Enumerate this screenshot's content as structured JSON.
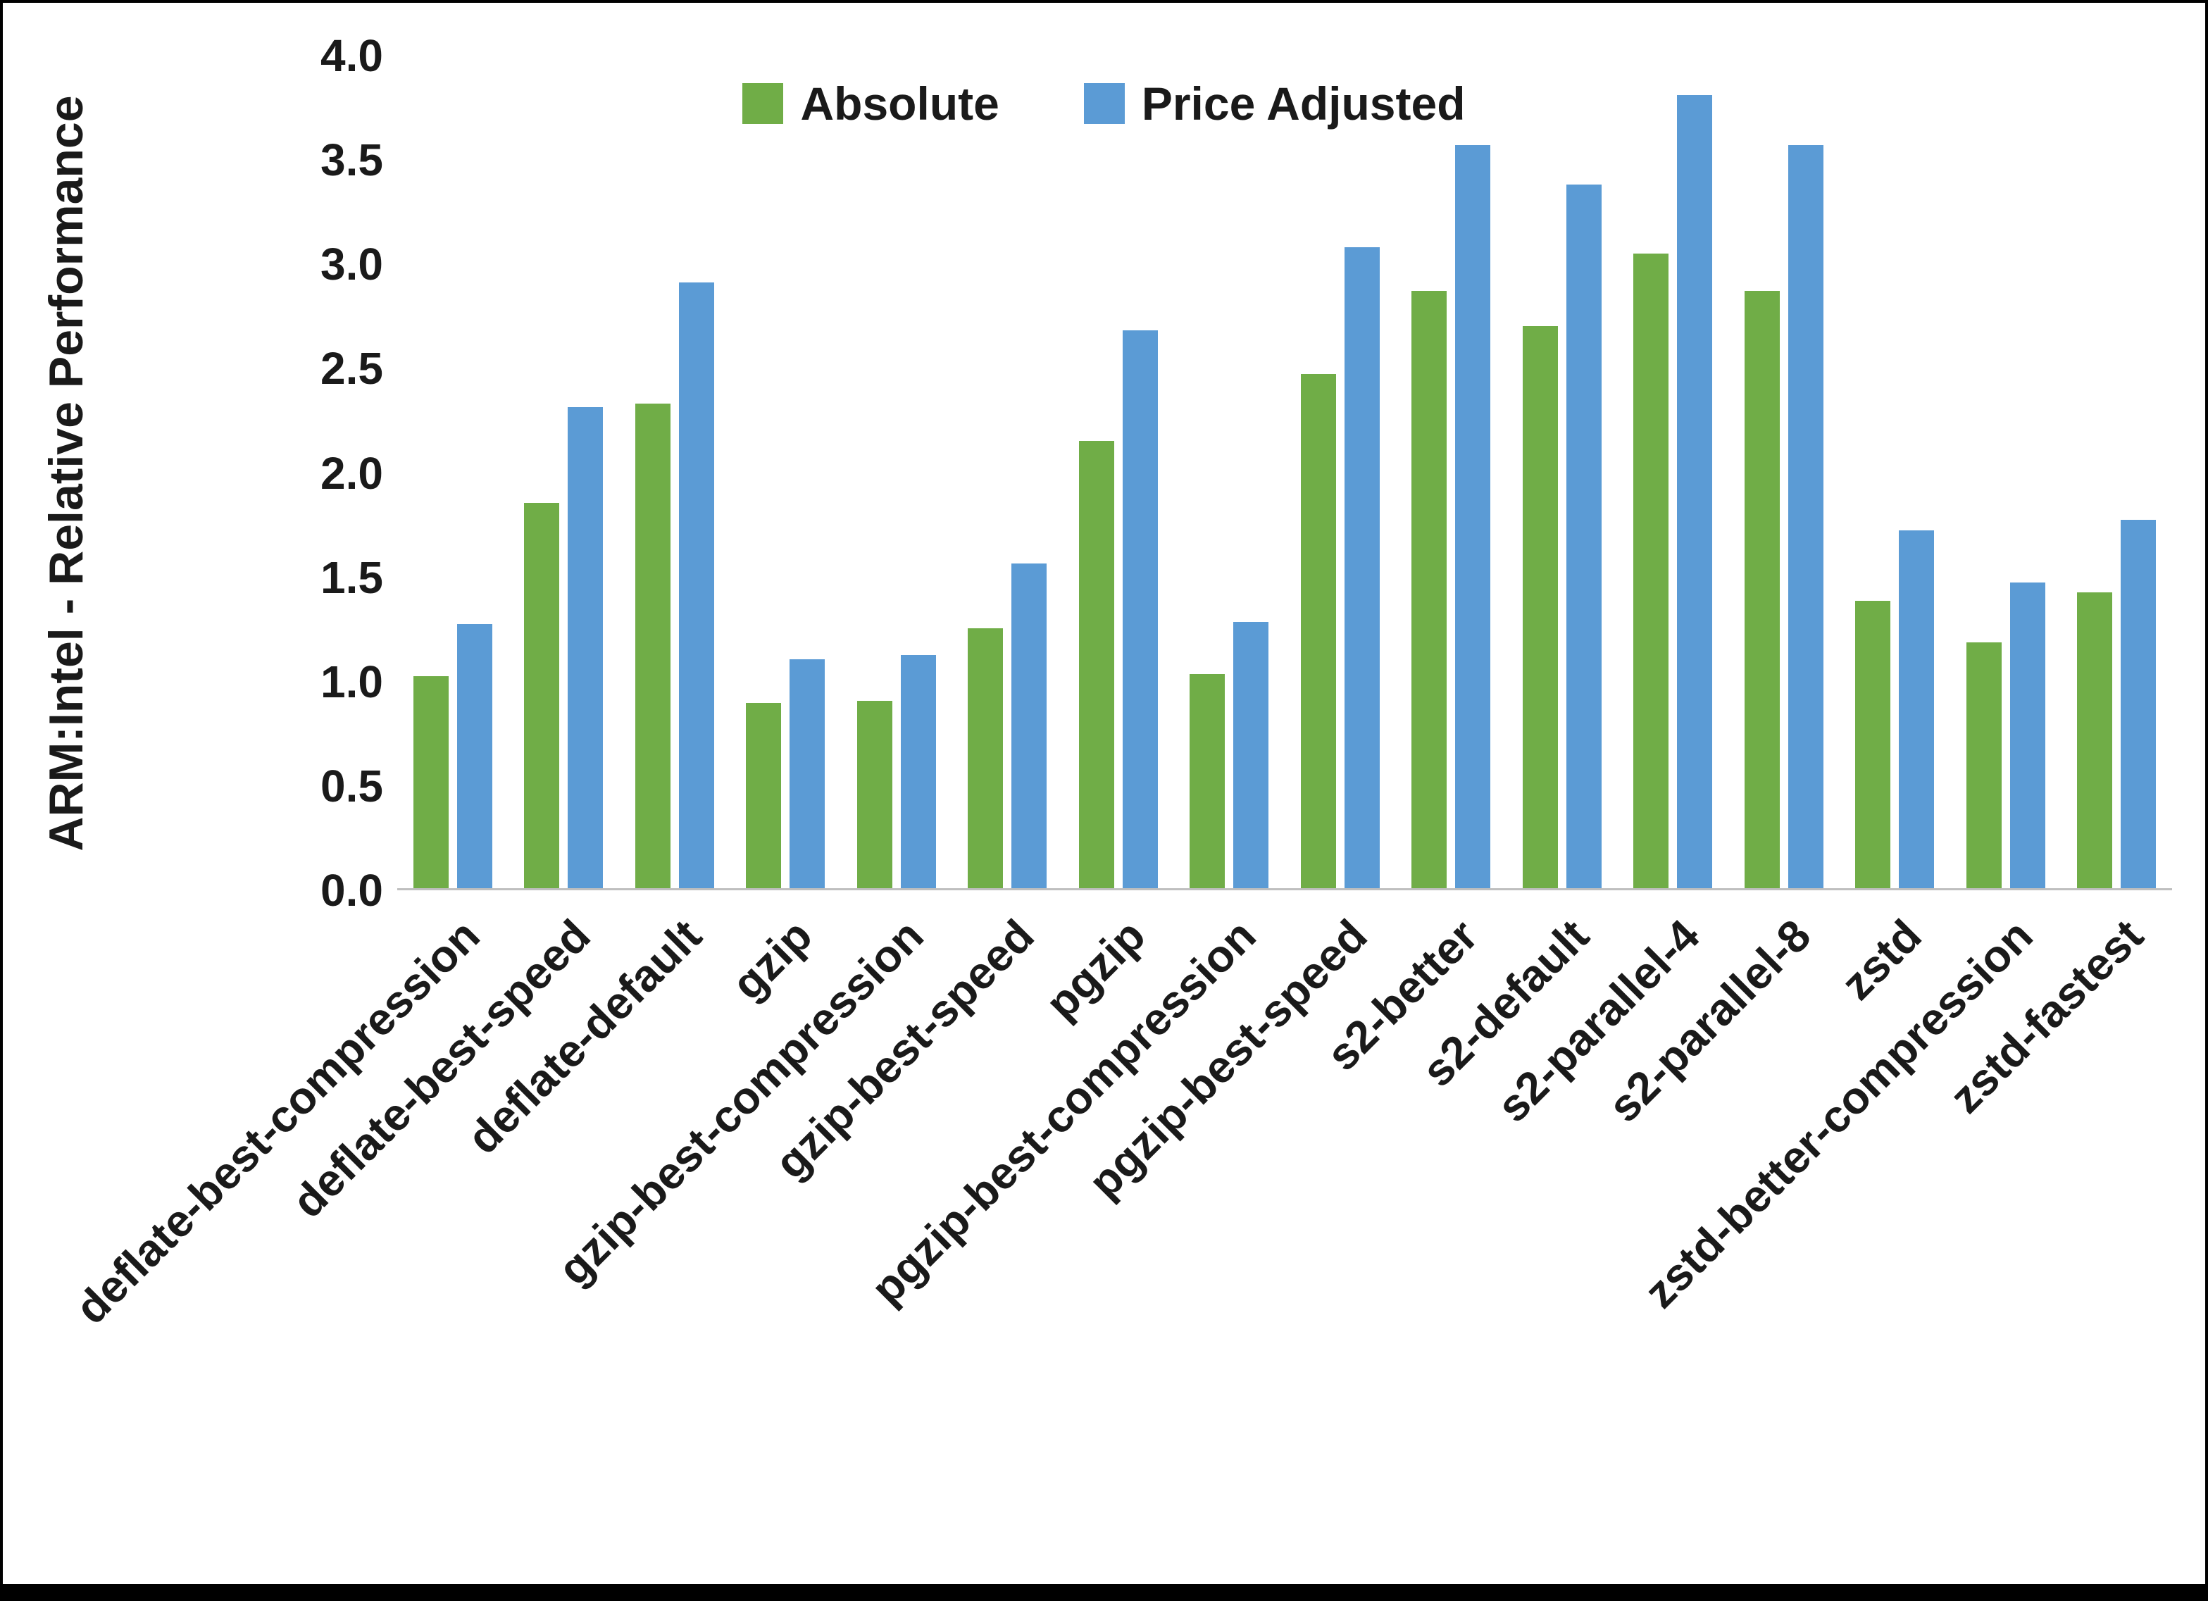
{
  "chart_data": {
    "type": "bar",
    "title": "",
    "xlabel": "",
    "ylabel": "ARM:Intel - Relative Performance",
    "ylim": [
      0,
      4.0
    ],
    "ytick_step": 0.5,
    "ytick_labels": [
      "0.0",
      "0.5",
      "1.0",
      "1.5",
      "2.0",
      "2.5",
      "3.0",
      "3.5",
      "4.0"
    ],
    "grid": false,
    "legend_position": "top",
    "categories": [
      "deflate-best-compression",
      "deflate-best-speed",
      "deflate-default",
      "gzip",
      "gzip-best-compression",
      "gzip-best-speed",
      "pgzip",
      "pgzip-best-compression",
      "pgzip-best-speed",
      "s2-better",
      "s2-default",
      "s2-parallel-4",
      "s2-parallel-8",
      "zstd",
      "zstd-better-compression",
      "zstd-fastest"
    ],
    "series": [
      {
        "name": "Absolute",
        "color": "#70AD47",
        "values": [
          1.02,
          1.85,
          2.33,
          0.89,
          0.9,
          1.25,
          2.15,
          1.03,
          2.47,
          2.87,
          2.7,
          3.05,
          2.87,
          1.38,
          1.18,
          1.42
        ]
      },
      {
        "name": "Price Adjusted",
        "color": "#5B9BD5",
        "values": [
          1.27,
          2.31,
          2.91,
          1.1,
          1.12,
          1.56,
          2.68,
          1.28,
          3.08,
          3.57,
          3.38,
          3.81,
          3.57,
          1.72,
          1.47,
          1.77
        ]
      }
    ]
  }
}
